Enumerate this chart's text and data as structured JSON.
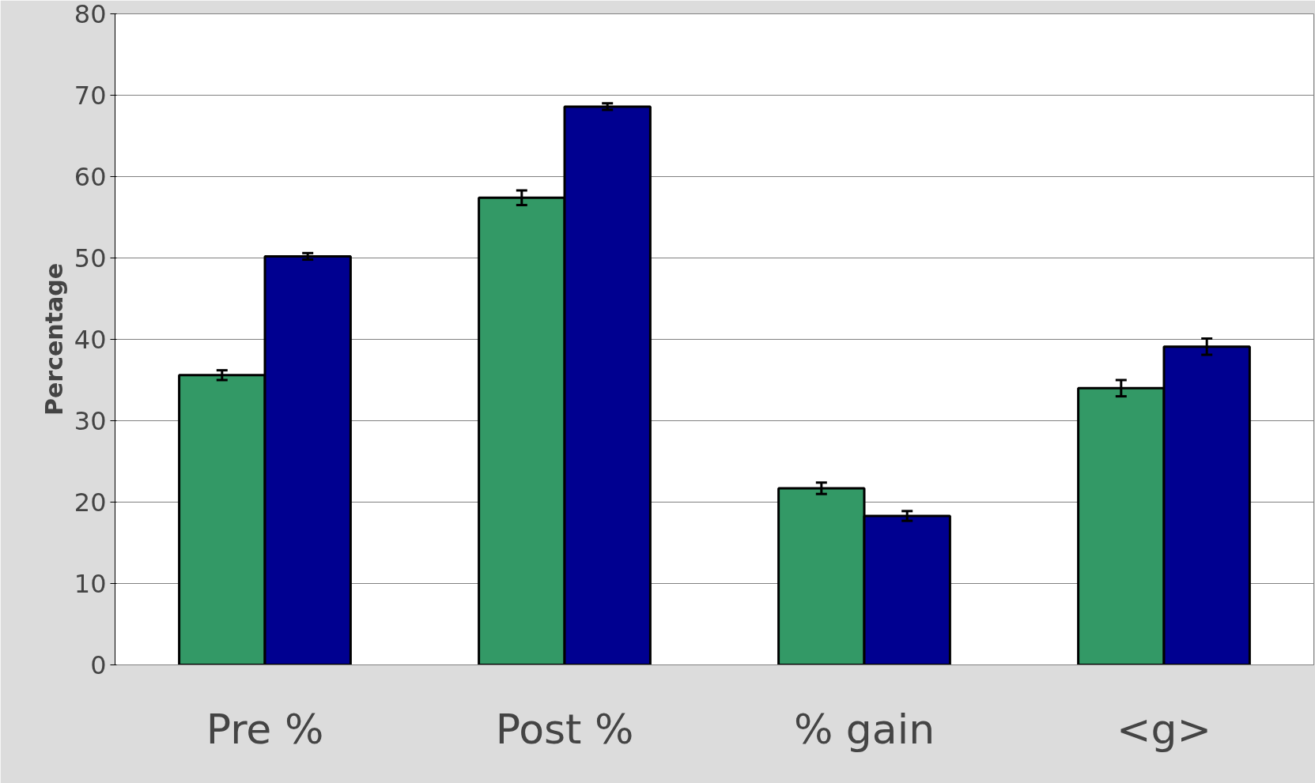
{
  "chart_data": {
    "type": "bar",
    "ylabel": "Percentage",
    "categories": [
      "Pre %",
      "Post %",
      "% gain",
      "<g>"
    ],
    "series": [
      {
        "color": "#339966",
        "values": [
          35.6,
          57.4,
          21.7,
          34.0
        ],
        "errors": [
          0.6,
          0.9,
          0.7,
          1.0
        ]
      },
      {
        "color": "#000090",
        "values": [
          50.2,
          68.6,
          18.3,
          39.1
        ],
        "errors": [
          0.4,
          0.4,
          0.6,
          1.0
        ]
      }
    ],
    "ylim": [
      0,
      80
    ],
    "yticks": [
      0,
      10,
      20,
      30,
      40,
      50,
      60,
      70,
      80
    ],
    "grid": "y"
  }
}
